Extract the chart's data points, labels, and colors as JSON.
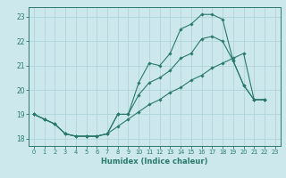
{
  "xlabel": "Humidex (Indice chaleur)",
  "xlim": [
    -0.5,
    23.5
  ],
  "ylim": [
    17.7,
    23.4
  ],
  "yticks": [
    18,
    19,
    20,
    21,
    22,
    23
  ],
  "xticks": [
    0,
    1,
    2,
    3,
    4,
    5,
    6,
    7,
    8,
    9,
    10,
    11,
    12,
    13,
    14,
    15,
    16,
    17,
    18,
    19,
    20,
    21,
    22,
    23
  ],
  "bg_color": "#cce8ec",
  "grid_color": "#aad0d6",
  "line_color": "#2a7a6a",
  "line1_x": [
    0,
    1,
    2,
    3,
    4,
    5,
    6,
    7,
    8,
    9,
    10,
    11,
    12,
    13,
    14,
    15,
    16,
    17,
    18,
    19,
    20,
    21,
    22
  ],
  "line1_y": [
    19.0,
    18.8,
    18.6,
    18.2,
    18.1,
    18.1,
    18.1,
    18.2,
    19.0,
    19.0,
    20.3,
    21.1,
    21.0,
    21.5,
    22.5,
    22.7,
    23.1,
    23.1,
    22.9,
    21.2,
    20.2,
    19.6,
    19.6
  ],
  "line2_x": [
    0,
    1,
    2,
    3,
    4,
    5,
    6,
    7,
    8,
    9,
    10,
    11,
    12,
    13,
    14,
    15,
    16,
    17,
    18,
    19,
    20,
    21,
    22
  ],
  "line2_y": [
    19.0,
    18.8,
    18.6,
    18.2,
    18.1,
    18.1,
    18.1,
    18.2,
    19.0,
    19.0,
    19.8,
    20.3,
    20.5,
    20.8,
    21.3,
    21.5,
    22.1,
    22.2,
    22.0,
    21.2,
    20.2,
    19.6,
    19.6
  ],
  "line3_x": [
    0,
    1,
    2,
    3,
    4,
    5,
    6,
    7,
    8,
    9,
    10,
    11,
    12,
    13,
    14,
    15,
    16,
    17,
    18,
    19,
    20,
    21,
    22
  ],
  "line3_y": [
    19.0,
    18.8,
    18.6,
    18.2,
    18.1,
    18.1,
    18.1,
    18.2,
    18.5,
    18.8,
    19.1,
    19.4,
    19.6,
    19.9,
    20.1,
    20.4,
    20.6,
    20.9,
    21.1,
    21.3,
    21.5,
    19.6,
    19.6
  ]
}
